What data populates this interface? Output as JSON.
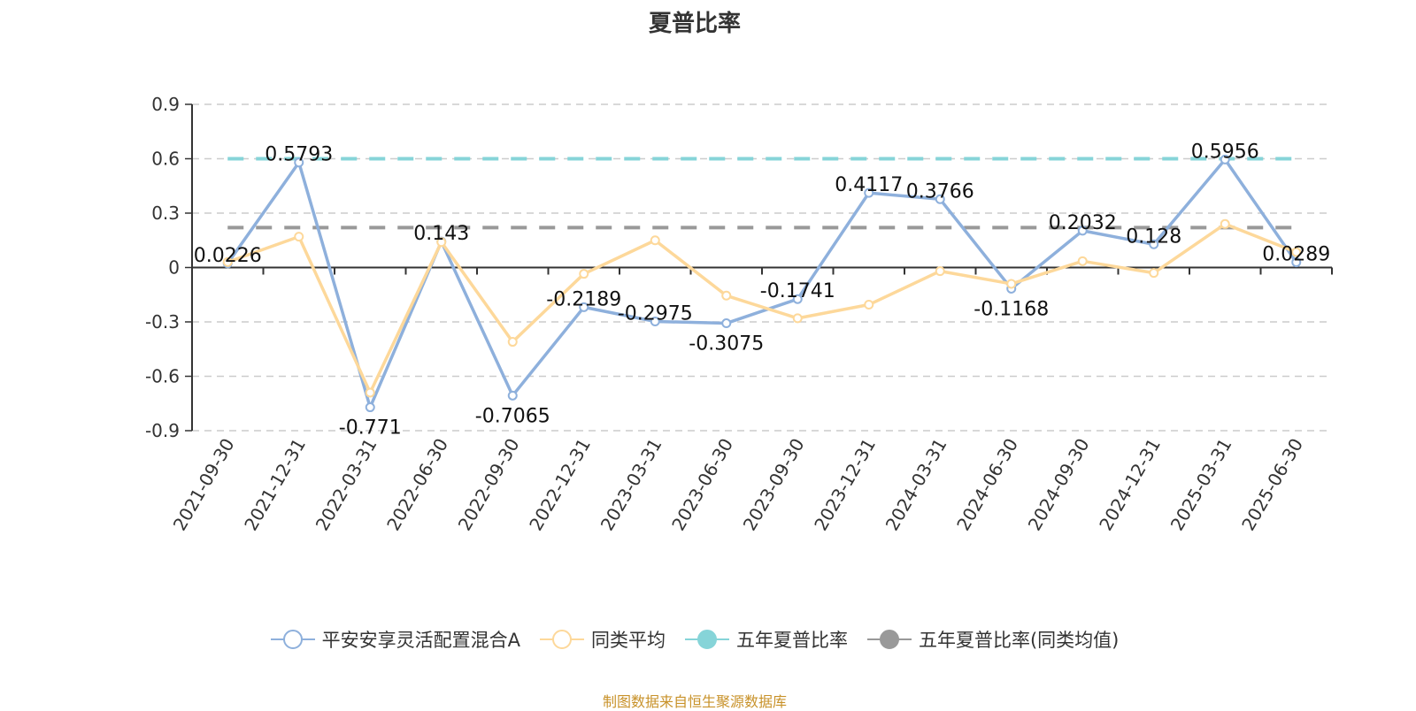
{
  "title": "夏普比率",
  "source": "制图数据来自恒生聚源数据库",
  "colors": {
    "fund": "#8eb0dc",
    "peer": "#fdd89a",
    "fund5y": "#86d4d8",
    "peer5y": "#999999"
  },
  "legend": [
    {
      "label": "平安安享灵活配置混合A",
      "icon": "hollow-circle-line",
      "color": "#8eb0dc"
    },
    {
      "label": "同类平均",
      "icon": "hollow-circle-line",
      "color": "#fdd89a"
    },
    {
      "label": "五年夏普比率",
      "icon": "filled-circle-line",
      "color": "#86d4d8"
    },
    {
      "label": "五年夏普比率(同类均值)",
      "icon": "filled-circle-line",
      "color": "#999999"
    }
  ],
  "chart_data": {
    "type": "line",
    "title": "夏普比率",
    "xlabel": "",
    "ylabel": "",
    "ylim": [
      -0.9,
      0.9
    ],
    "yticks": [
      0.9,
      0.6,
      0.3,
      0,
      -0.3,
      -0.6,
      -0.9
    ],
    "grid": true,
    "legend_position": "bottom",
    "x": [
      "2021-09-30",
      "2021-12-31",
      "2022-03-31",
      "2022-06-30",
      "2022-09-30",
      "2022-12-31",
      "2023-03-31",
      "2023-06-30",
      "2023-09-30",
      "2023-12-31",
      "2024-03-31",
      "2024-06-30",
      "2024-09-30",
      "2024-12-31",
      "2025-03-31",
      "2025-06-30"
    ],
    "series": [
      {
        "name": "平安安享灵活配置混合A",
        "values": [
          0.0226,
          0.5793,
          -0.771,
          0.143,
          -0.7065,
          -0.2189,
          -0.2975,
          -0.3075,
          -0.1741,
          0.4117,
          0.3766,
          -0.1168,
          0.2032,
          0.128,
          0.5956,
          0.0289
        ],
        "labels": true
      },
      {
        "name": "同类平均",
        "values": [
          0.03,
          0.17,
          -0.69,
          0.14,
          -0.41,
          -0.035,
          0.15,
          -0.155,
          -0.28,
          -0.205,
          -0.02,
          -0.09,
          0.035,
          -0.03,
          0.24,
          0.085
        ],
        "labels": false
      },
      {
        "name": "五年夏普比率",
        "constant": 0.6,
        "style": "dashed"
      },
      {
        "name": "五年夏普比率(同类均值)",
        "constant": 0.22,
        "style": "dashed"
      }
    ]
  }
}
